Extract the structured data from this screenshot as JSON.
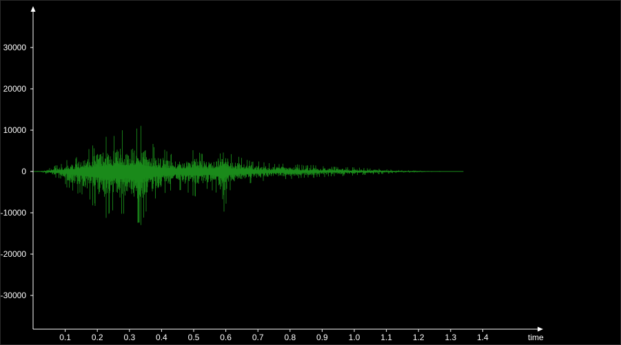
{
  "chart_data": {
    "type": "line",
    "title": "",
    "xlabel": "time",
    "ylabel": "",
    "xlim": [
      0,
      1.6
    ],
    "ylim": [
      -38500,
      40000
    ],
    "x_ticks": [
      0.1,
      0.2,
      0.3,
      0.4,
      0.5,
      0.6,
      0.7,
      0.8,
      0.9,
      1.0,
      1.1,
      1.2,
      1.3,
      1.4
    ],
    "x_tick_labels": [
      "0.1",
      "0.2",
      "0.3",
      "0.4",
      "0.5",
      "0.6",
      "0.7",
      "0.8",
      "0.9",
      "1.0",
      "1.1",
      "1.2",
      "1.3",
      "1.4"
    ],
    "y_ticks": [
      30000,
      20000,
      10000,
      0,
      -10000,
      -20000,
      -30000
    ],
    "y_tick_labels": [
      "30000",
      "20000",
      "10000",
      "0",
      "-10000",
      "-20000",
      "-30000"
    ],
    "grid": false,
    "colors": {
      "background": "#000000",
      "axis": "#ffffff",
      "waveform": "#1a8a1a"
    },
    "series": [
      {
        "style": "waveform-envelope",
        "x": [
          0.0,
          0.03,
          0.06,
          0.09,
          0.11,
          0.13,
          0.15,
          0.17,
          0.19,
          0.21,
          0.23,
          0.25,
          0.27,
          0.29,
          0.31,
          0.33,
          0.35,
          0.37,
          0.39,
          0.41,
          0.43,
          0.45,
          0.47,
          0.49,
          0.51,
          0.53,
          0.55,
          0.57,
          0.59,
          0.61,
          0.63,
          0.65,
          0.67,
          0.69,
          0.71,
          0.73,
          0.75,
          0.77,
          0.79,
          0.81,
          0.83,
          0.85,
          0.87,
          0.89,
          0.91,
          0.93,
          0.95,
          0.97,
          0.99,
          1.01,
          1.03,
          1.05,
          1.07,
          1.09,
          1.11,
          1.13,
          1.15,
          1.17,
          1.19,
          1.21,
          1.23,
          1.25,
          1.27,
          1.29,
          1.31,
          1.34
        ],
        "upper": [
          0,
          300,
          1200,
          2000,
          3000,
          3500,
          4500,
          5500,
          6500,
          8000,
          8500,
          9500,
          10500,
          10000,
          9500,
          12000,
          9000,
          7000,
          6000,
          5500,
          4500,
          4000,
          4500,
          5000,
          5500,
          4500,
          4000,
          4000,
          9500,
          4500,
          4000,
          3500,
          3000,
          2500,
          2500,
          2200,
          2000,
          2000,
          1800,
          1800,
          1700,
          1600,
          1600,
          1500,
          1400,
          1300,
          1200,
          1100,
          1000,
          1000,
          900,
          800,
          700,
          600,
          500,
          400,
          350,
          300,
          250,
          200,
          150,
          120,
          100,
          80,
          60,
          40
        ],
        "lower": [
          0,
          -300,
          -1200,
          -2000,
          -4500,
          -5000,
          -6000,
          -7500,
          -8500,
          -10000,
          -11500,
          -11000,
          -12500,
          -10500,
          -11000,
          -14000,
          -10500,
          -8500,
          -7000,
          -6000,
          -5000,
          -4500,
          -5000,
          -5500,
          -6500,
          -5000,
          -4500,
          -5500,
          -12500,
          -5000,
          -4500,
          -3500,
          -3000,
          -2800,
          -2500,
          -2400,
          -2200,
          -2100,
          -2000,
          -1900,
          -1800,
          -1700,
          -1600,
          -1500,
          -1400,
          -1300,
          -1200,
          -1100,
          -1000,
          -1000,
          -900,
          -800,
          -700,
          -600,
          -500,
          -400,
          -350,
          -300,
          -250,
          -200,
          -150,
          -120,
          -100,
          -80,
          -60,
          -40
        ]
      }
    ]
  }
}
